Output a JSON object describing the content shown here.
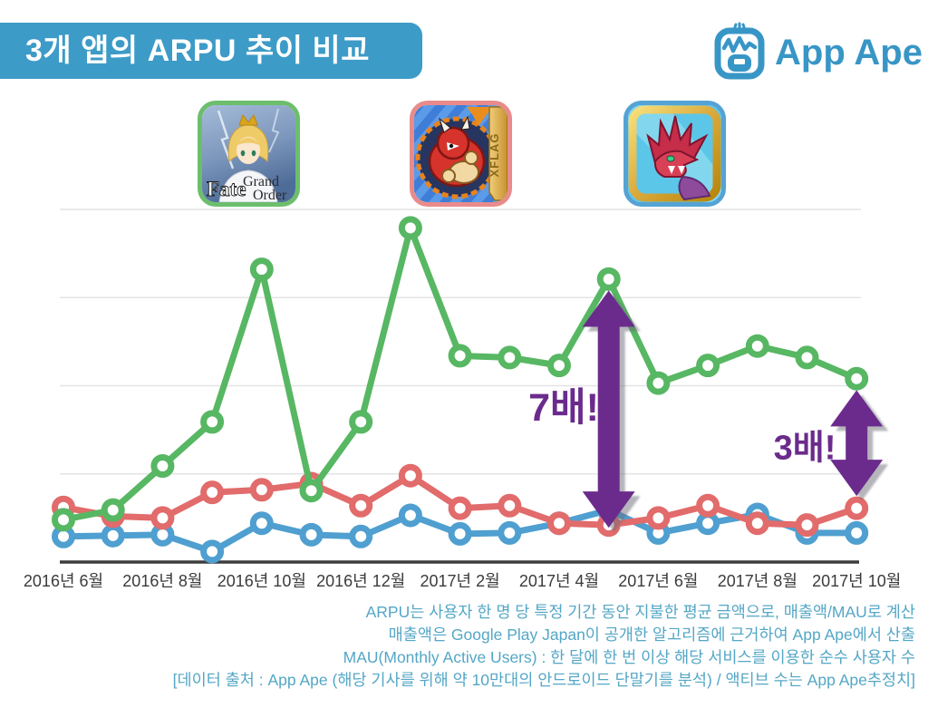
{
  "header": {
    "title": "3개 앱의 ARPU 추이 비교",
    "logo_text": "App Ape"
  },
  "theme": {
    "banner": "#3D9BC7",
    "logo": "#3896C6",
    "footer_text": "#54A7C6",
    "annotation": "#6B2B8C",
    "axis_text": "#3B3B3B",
    "gridline": "#E4E4E4",
    "axis_line": "#3D3D3D"
  },
  "apps": [
    {
      "name": "Fate/Grand Order",
      "accent": "#57B763",
      "icon_border": "#6CBE6C",
      "icon_text_primary": "Fate",
      "icon_text_secondary_1": "Grand",
      "icon_text_secondary_2": "Order"
    },
    {
      "name": "Monster Strike",
      "accent": "#E26B6B",
      "icon_border": "#E98B8B",
      "icon_banner_text": "XFLAG"
    },
    {
      "name": "Puzzle & Dragons",
      "accent": "#4F9FD0",
      "icon_border": "#54A3D4"
    }
  ],
  "chart_data": {
    "type": "line",
    "title": "3개 앱의 ARPU 추이 비교",
    "x_tick_labels": [
      "2016년 6월",
      "2016년 8월",
      "2016년 10월",
      "2016년 12월",
      "2017년 2월",
      "2017년 4월",
      "2017년 6월",
      "2017년 8월",
      "2017년 10월"
    ],
    "months": [
      "2016-06",
      "2016-07",
      "2016-08",
      "2016-09",
      "2016-10",
      "2016-11",
      "2016-12",
      "2017-01",
      "2017-02",
      "2017-03",
      "2017-04",
      "2017-05",
      "2017-06",
      "2017-07",
      "2017-08",
      "2017-09",
      "2017-10"
    ],
    "y_axis": {
      "labels_visible": false,
      "unit": "relative units (1.0 = one gridline spacing)",
      "ylim": [
        0,
        4.2
      ],
      "gridlines": [
        1,
        2,
        3,
        4
      ]
    },
    "legend_position": "app icons above chart (green / red / blue borders)",
    "grid": true,
    "series": [
      {
        "id": "fgo",
        "name": "Fate/Grand Order",
        "color": "#57B763",
        "values": [
          0.48,
          0.59,
          1.09,
          1.59,
          3.32,
          0.81,
          1.59,
          3.79,
          2.34,
          2.32,
          2.23,
          3.21,
          2.03,
          2.23,
          2.45,
          2.32,
          2.08
        ]
      },
      {
        "id": "monster-strike",
        "name": "Monster Strike",
        "color": "#E26B6B",
        "values": [
          0.62,
          0.52,
          0.5,
          0.79,
          0.82,
          0.89,
          0.64,
          0.98,
          0.61,
          0.64,
          0.44,
          0.42,
          0.5,
          0.64,
          0.44,
          0.42,
          0.61
        ]
      },
      {
        "id": "puzzle-and-dragons",
        "name": "Puzzle & Dragons",
        "color": "#4F9FD0",
        "values": [
          0.29,
          0.3,
          0.31,
          0.12,
          0.44,
          0.31,
          0.29,
          0.53,
          0.32,
          0.33,
          0.44,
          0.59,
          0.33,
          0.44,
          0.54,
          0.33,
          0.33
        ]
      }
    ],
    "annotations": [
      {
        "text": "7배!",
        "month": "2017-05",
        "month_index": 11,
        "arrow_top_value": 3.08,
        "arrow_bottom_value": 0.39
      },
      {
        "text": "3배!",
        "month": "2017-10",
        "month_index": 16,
        "arrow_top_value": 1.95,
        "arrow_bottom_value": 0.75
      }
    ],
    "annotation_color": "#6B2B8C"
  },
  "footer": {
    "lines": [
      "ARPU는 사용자 한 명 당 특정 기간 동안 지불한 평균 금액으로, 매출액/MAU로 계산",
      "매출액은 Google Play Japan이 공개한 알고리즘에 근거하여 App Ape에서 산출",
      "MAU(Monthly Active Users) : 한 달에 한 번 이상 해당 서비스를 이용한 순수 사용자 수",
      "[데이터 출처 : App Ape (해당 기사를 위해 약 10만대의 안드로이드 단말기를 분석) / 액티브 수는 App Ape추정치]"
    ]
  }
}
